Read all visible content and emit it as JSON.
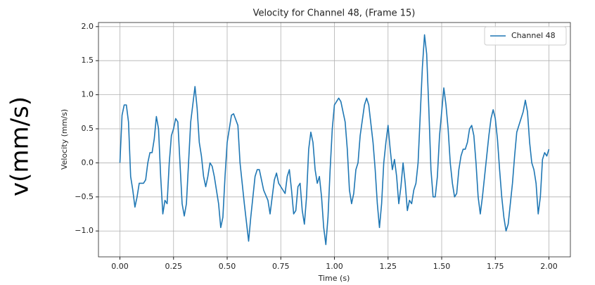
{
  "side_label": "v(mm/s)",
  "chart_data": {
    "type": "line",
    "title": "Velocity for Channel 48, (Frame 15)",
    "xlabel": "Time (s)",
    "ylabel": "Velocity (mm/s)",
    "x": [
      0.0,
      0.01,
      0.02,
      0.03,
      0.04,
      0.05,
      0.06,
      0.07,
      0.08,
      0.09,
      0.11,
      0.12,
      0.13,
      0.14,
      0.15,
      0.16,
      0.17,
      0.18,
      0.19,
      0.2,
      0.21,
      0.22,
      0.23,
      0.24,
      0.25,
      0.26,
      0.27,
      0.28,
      0.29,
      0.3,
      0.31,
      0.32,
      0.33,
      0.35,
      0.36,
      0.37,
      0.38,
      0.39,
      0.4,
      0.41,
      0.42,
      0.43,
      0.44,
      0.46,
      0.47,
      0.48,
      0.49,
      0.5,
      0.52,
      0.53,
      0.55,
      0.56,
      0.58,
      0.6,
      0.61,
      0.63,
      0.64,
      0.65,
      0.67,
      0.69,
      0.7,
      0.71,
      0.72,
      0.73,
      0.74,
      0.76,
      0.77,
      0.78,
      0.79,
      0.8,
      0.81,
      0.82,
      0.83,
      0.84,
      0.85,
      0.86,
      0.87,
      0.88,
      0.89,
      0.9,
      0.91,
      0.92,
      0.93,
      0.94,
      0.95,
      0.96,
      0.97,
      0.98,
      0.99,
      1.0,
      1.02,
      1.03,
      1.05,
      1.06,
      1.07,
      1.08,
      1.09,
      1.1,
      1.11,
      1.12,
      1.14,
      1.15,
      1.16,
      1.18,
      1.19,
      1.2,
      1.21,
      1.22,
      1.23,
      1.24,
      1.25,
      1.26,
      1.27,
      1.28,
      1.29,
      1.3,
      1.31,
      1.32,
      1.33,
      1.34,
      1.35,
      1.36,
      1.37,
      1.38,
      1.39,
      1.4,
      1.41,
      1.42,
      1.43,
      1.44,
      1.45,
      1.46,
      1.47,
      1.48,
      1.49,
      1.51,
      1.52,
      1.53,
      1.54,
      1.55,
      1.56,
      1.57,
      1.58,
      1.59,
      1.6,
      1.61,
      1.62,
      1.63,
      1.64,
      1.65,
      1.66,
      1.67,
      1.68,
      1.69,
      1.7,
      1.71,
      1.72,
      1.73,
      1.74,
      1.75,
      1.76,
      1.77,
      1.78,
      1.79,
      1.8,
      1.81,
      1.82,
      1.83,
      1.84,
      1.85,
      1.86,
      1.88,
      1.89,
      1.9,
      1.91,
      1.92,
      1.93,
      1.94,
      1.95,
      1.96,
      1.97,
      1.98,
      1.99,
      2.0
    ],
    "series": [
      {
        "name": "Channel 48",
        "color": "#1f77b4",
        "values": [
          0.0,
          0.7,
          0.85,
          0.85,
          0.6,
          -0.2,
          -0.4,
          -0.65,
          -0.5,
          -0.3,
          -0.3,
          -0.25,
          0.0,
          0.15,
          0.15,
          0.35,
          0.68,
          0.5,
          -0.2,
          -0.75,
          -0.55,
          -0.6,
          0.0,
          0.4,
          0.5,
          0.65,
          0.6,
          0.0,
          -0.6,
          -0.78,
          -0.6,
          0.0,
          0.6,
          1.12,
          0.8,
          0.3,
          0.1,
          -0.2,
          -0.35,
          -0.2,
          0.0,
          -0.05,
          -0.2,
          -0.6,
          -0.95,
          -0.8,
          -0.2,
          0.3,
          0.7,
          0.72,
          0.55,
          0.0,
          -0.6,
          -1.15,
          -0.8,
          -0.2,
          -0.1,
          -0.1,
          -0.4,
          -0.55,
          -0.75,
          -0.5,
          -0.25,
          -0.15,
          -0.3,
          -0.4,
          -0.45,
          -0.2,
          -0.1,
          -0.4,
          -0.75,
          -0.7,
          -0.35,
          -0.3,
          -0.7,
          -0.9,
          -0.5,
          0.2,
          0.45,
          0.3,
          -0.1,
          -0.3,
          -0.2,
          -0.5,
          -0.95,
          -1.2,
          -0.8,
          -0.1,
          0.5,
          0.85,
          0.95,
          0.9,
          0.6,
          0.2,
          -0.4,
          -0.6,
          -0.45,
          -0.1,
          0.0,
          0.4,
          0.85,
          0.95,
          0.85,
          0.3,
          -0.1,
          -0.6,
          -0.95,
          -0.6,
          0.0,
          0.3,
          0.55,
          0.2,
          -0.1,
          0.05,
          -0.2,
          -0.6,
          -0.35,
          0.0,
          -0.3,
          -0.7,
          -0.55,
          -0.6,
          -0.4,
          -0.3,
          0.0,
          0.7,
          1.4,
          1.88,
          1.6,
          0.8,
          -0.1,
          -0.5,
          -0.5,
          -0.2,
          0.4,
          1.1,
          0.85,
          0.5,
          0.0,
          -0.3,
          -0.5,
          -0.45,
          -0.1,
          0.1,
          0.2,
          0.2,
          0.3,
          0.5,
          0.55,
          0.4,
          0.0,
          -0.5,
          -0.75,
          -0.5,
          -0.2,
          0.1,
          0.4,
          0.65,
          0.78,
          0.65,
          0.35,
          -0.1,
          -0.5,
          -0.8,
          -1.0,
          -0.9,
          -0.6,
          -0.3,
          0.1,
          0.45,
          0.55,
          0.75,
          0.92,
          0.75,
          0.3,
          0.0,
          -0.1,
          -0.3,
          -0.75,
          -0.5,
          0.05,
          0.15,
          0.1,
          0.2
        ]
      }
    ],
    "xlim": [
      -0.1,
      2.1
    ],
    "ylim": [
      -1.38,
      2.06
    ],
    "xticks": [
      {
        "value": 0,
        "label": "0.00"
      },
      {
        "value": 0.25,
        "label": "0.25"
      },
      {
        "value": 0.5,
        "label": "0.50"
      },
      {
        "value": 0.75,
        "label": "0.75"
      },
      {
        "value": 1,
        "label": "1.00"
      },
      {
        "value": 1.25,
        "label": "1.25"
      },
      {
        "value": 1.5,
        "label": "1.50"
      },
      {
        "value": 1.75,
        "label": "1.75"
      },
      {
        "value": 2,
        "label": "2.00"
      }
    ],
    "yticks": [
      {
        "value": -1,
        "label": "−1.0"
      },
      {
        "value": -0.5,
        "label": "−0.5"
      },
      {
        "value": 0,
        "label": "0.0"
      },
      {
        "value": 0.5,
        "label": "0.5"
      },
      {
        "value": 1,
        "label": "1.0"
      },
      {
        "value": 1.5,
        "label": "1.5"
      },
      {
        "value": 2,
        "label": "2.0"
      }
    ],
    "grid": true,
    "legend": "upper right"
  }
}
